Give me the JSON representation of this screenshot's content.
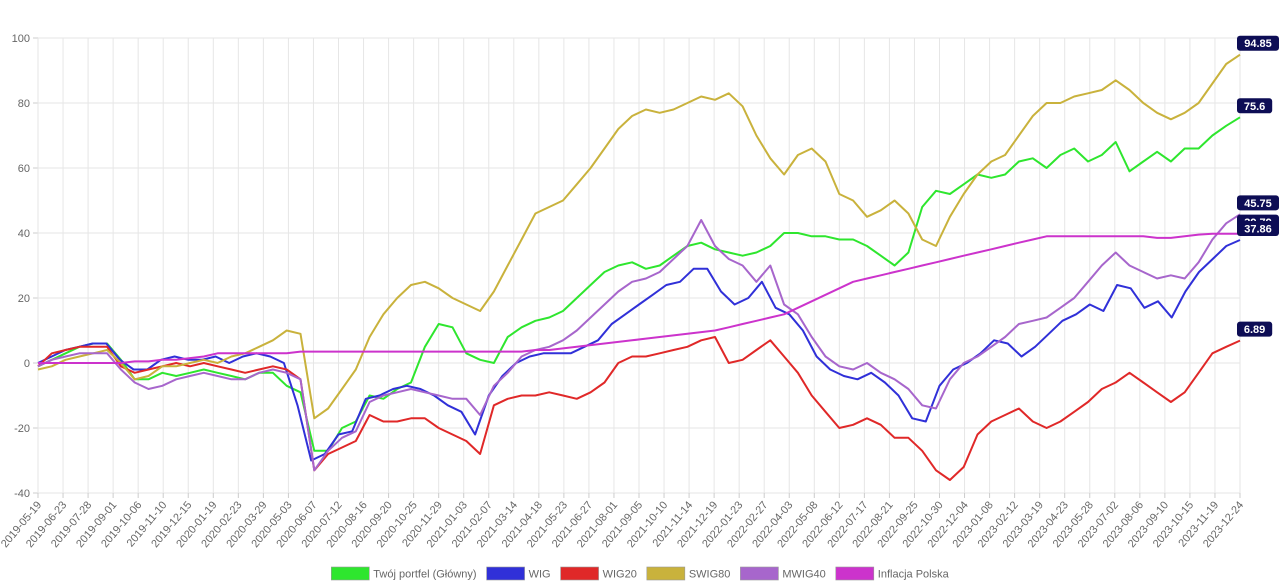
{
  "chart_data": {
    "type": "line",
    "title": "",
    "xlabel": "",
    "ylabel": "",
    "ylim": [
      -40,
      100
    ],
    "y_ticks": [
      "100",
      "80",
      "60",
      "40",
      "20",
      "0",
      "-20",
      "-40"
    ],
    "grid": true,
    "legend_position": "bottom",
    "x_tick_labels": [
      "2019-05-19",
      "2019-06-23",
      "2019-07-28",
      "2019-09-01",
      "2019-10-06",
      "2019-11-10",
      "2019-12-15",
      "2020-01-19",
      "2020-02-23",
      "2020-03-29",
      "2020-05-03",
      "2020-06-07",
      "2020-07-12",
      "2020-08-16",
      "2020-09-20",
      "2020-10-25",
      "2020-11-29",
      "2021-01-03",
      "2021-02-07",
      "2021-03-14",
      "2021-04-18",
      "2021-05-23",
      "2021-06-27",
      "2021-08-01",
      "2021-09-05",
      "2021-10-10",
      "2021-11-14",
      "2021-12-19",
      "2022-01-23",
      "2022-02-27",
      "2022-04-03",
      "2022-05-08",
      "2022-06-12",
      "2022-07-17",
      "2022-08-21",
      "2022-09-25",
      "2022-10-30",
      "2022-12-04",
      "2023-01-08",
      "2023-02-12",
      "2023-03-19",
      "2023-04-23",
      "2023-05-28",
      "2023-07-02",
      "2023-08-06",
      "2023-09-10",
      "2023-10-15",
      "2023-11-19",
      "2023-12-24"
    ],
    "series": [
      {
        "name": "Twój portfel (Główny)",
        "color": "#2ee62e",
        "end_label": "75.6",
        "values": [
          -1,
          1,
          3,
          5,
          6,
          6,
          1,
          -5,
          -5,
          -3,
          -4,
          -3,
          -2,
          -3,
          -4,
          -5,
          -3,
          -3,
          -7,
          -9,
          -27,
          -27,
          -20,
          -18,
          -10,
          -11,
          -8,
          -6,
          5,
          12,
          11,
          3,
          1,
          0,
          8,
          11,
          13,
          14,
          16,
          20,
          24,
          28,
          30,
          31,
          29,
          30,
          33,
          36,
          37,
          35,
          34,
          33,
          34,
          36,
          40,
          40,
          39,
          39,
          38,
          38,
          36,
          33,
          30,
          34,
          48,
          53,
          52,
          55,
          58,
          57,
          58,
          62,
          63,
          60,
          64,
          66,
          62,
          64,
          68,
          59,
          62,
          65,
          62,
          66,
          66,
          70,
          73,
          75.6
        ]
      },
      {
        "name": "WIG",
        "color": "#3030d8",
        "end_label": "37.86",
        "values": [
          0,
          2,
          4,
          5,
          6,
          6,
          1,
          -2,
          -2,
          1,
          2,
          1,
          1,
          2,
          0,
          2,
          3,
          2,
          0,
          -13,
          -30,
          -28,
          -22,
          -21,
          -11,
          -10,
          -8,
          -7,
          -8,
          -10,
          -13,
          -15,
          -22,
          -10,
          -4,
          0,
          2,
          3,
          3,
          3,
          5,
          7,
          12,
          15,
          18,
          21,
          24,
          25,
          29,
          29,
          22,
          18,
          20,
          25,
          17,
          15,
          10,
          2,
          -2,
          -4,
          -5,
          -3,
          -6,
          -10,
          -17,
          -18,
          -7,
          -2,
          0,
          3,
          7,
          6,
          2,
          5,
          9,
          13,
          15,
          18,
          16,
          24,
          23,
          17,
          19,
          14,
          22,
          28,
          32,
          36,
          37.86
        ]
      },
      {
        "name": "WIG20",
        "color": "#e02828",
        "end_label": "6.89",
        "values": [
          -1,
          3,
          4,
          5,
          5,
          5,
          -1,
          -3,
          -2,
          -1,
          0,
          -1,
          0,
          -1,
          -2,
          -3,
          -2,
          -1,
          -2,
          -5,
          -33,
          -28,
          -26,
          -24,
          -16,
          -18,
          -18,
          -17,
          -17,
          -20,
          -22,
          -24,
          -28,
          -13,
          -11,
          -10,
          -10,
          -9,
          -10,
          -11,
          -9,
          -6,
          0,
          2,
          2,
          3,
          4,
          5,
          7,
          8,
          0,
          1,
          4,
          7,
          2,
          -3,
          -10,
          -15,
          -20,
          -19,
          -17,
          -19,
          -23,
          -23,
          -27,
          -33,
          -36,
          -32,
          -22,
          -18,
          -16,
          -14,
          -18,
          -20,
          -18,
          -15,
          -12,
          -8,
          -6,
          -3,
          -6,
          -9,
          -12,
          -9,
          -3,
          3,
          5,
          6.89
        ]
      },
      {
        "name": "SWIG80",
        "color": "#c9b23c",
        "end_label": "94.85",
        "values": [
          -2,
          -1,
          1,
          2,
          3,
          4,
          0,
          -5,
          -4,
          -1,
          -1,
          0,
          1,
          0,
          2,
          3,
          5,
          7,
          10,
          9,
          -17,
          -14,
          -8,
          -2,
          8,
          15,
          20,
          24,
          25,
          23,
          20,
          18,
          16,
          22,
          30,
          38,
          46,
          48,
          50,
          55,
          60,
          66,
          72,
          76,
          78,
          77,
          78,
          80,
          82,
          81,
          83,
          79,
          70,
          63,
          58,
          64,
          66,
          62,
          52,
          50,
          45,
          47,
          50,
          46,
          38,
          36,
          45,
          52,
          58,
          62,
          64,
          70,
          76,
          80,
          80,
          82,
          83,
          84,
          87,
          84,
          80,
          77,
          75,
          77,
          80,
          86,
          92,
          94.85
        ]
      },
      {
        "name": "MWIG40",
        "color": "#a766cc",
        "end_label": "45.75",
        "values": [
          -1,
          1,
          2,
          3,
          3,
          3,
          -2,
          -6,
          -8,
          -7,
          -5,
          -4,
          -3,
          -4,
          -5,
          -5,
          -3,
          -2,
          -3,
          -5,
          -33,
          -27,
          -23,
          -21,
          -12,
          -10,
          -9,
          -8,
          -9,
          -10,
          -11,
          -11,
          -16,
          -7,
          -3,
          2,
          4,
          5,
          7,
          10,
          14,
          18,
          22,
          25,
          26,
          28,
          32,
          36,
          44,
          36,
          32,
          30,
          25,
          30,
          18,
          15,
          8,
          2,
          -1,
          -2,
          0,
          -3,
          -5,
          -8,
          -13,
          -14,
          -5,
          0,
          2,
          5,
          8,
          12,
          13,
          14,
          17,
          20,
          25,
          30,
          34,
          30,
          28,
          26,
          27,
          26,
          31,
          38,
          43,
          45.75
        ]
      },
      {
        "name": "Inflacja Polska",
        "color": "#cc33cc",
        "end_label": "39.79",
        "values": [
          0,
          0,
          0,
          0,
          0,
          0,
          0,
          0.5,
          0.5,
          1,
          1,
          1.5,
          2,
          3,
          3,
          3,
          3,
          3,
          3,
          3.5,
          3.5,
          3.5,
          3.5,
          3.5,
          3.5,
          3.5,
          3.5,
          3.5,
          3.5,
          3.5,
          3.5,
          3.5,
          3.5,
          3.5,
          3.5,
          3.5,
          4,
          4,
          4.5,
          5,
          5.5,
          6,
          6.5,
          7,
          7.5,
          8,
          8.5,
          9,
          9.5,
          10,
          11,
          12,
          13,
          14,
          15,
          17,
          19,
          21,
          23,
          25,
          26,
          27,
          28,
          29,
          30,
          31,
          32,
          33,
          34,
          35,
          36,
          37,
          38,
          39,
          39,
          39,
          39,
          39,
          39,
          39,
          39,
          38.5,
          38.5,
          39,
          39.5,
          39.8,
          39.8,
          39.79
        ]
      }
    ]
  }
}
